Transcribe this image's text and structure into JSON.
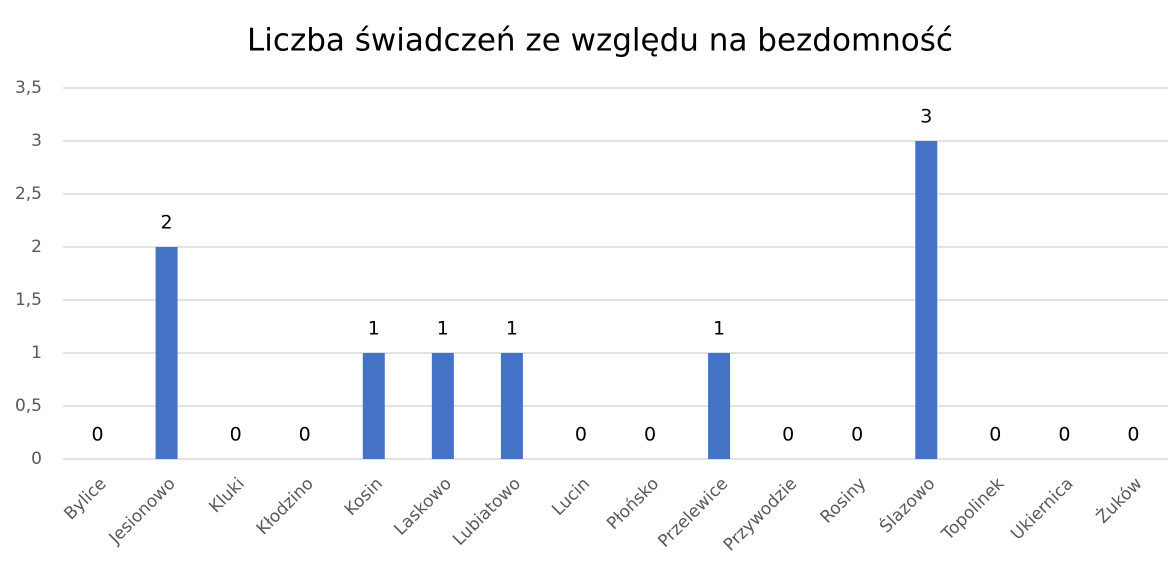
{
  "chart_data": {
    "type": "bar",
    "title": "Liczba świadczeń ze względu na bezdomność",
    "categories": [
      "Bylice",
      "Jesionowo",
      "Kluki",
      "Kłodzino",
      "Kosin",
      "Laskowo",
      "Lubiatowo",
      "Lucin",
      "Płońsko",
      "Przelewice",
      "Przywodzie",
      "Rosiny",
      "Ślazowo",
      "Topolinek",
      "Ukiernica",
      "Żuków"
    ],
    "values": [
      0,
      2,
      0,
      0,
      1,
      1,
      1,
      0,
      0,
      1,
      0,
      0,
      3,
      0,
      0,
      0
    ],
    "color": "#4472c4",
    "ylim": [
      0,
      3.5
    ],
    "yticks": [
      0,
      {
        "value": 0.5,
        "label": "0,5"
      },
      1,
      {
        "value": 1.5,
        "label": "1,5"
      },
      2,
      {
        "value": 2.5,
        "label": "2,5"
      },
      3,
      {
        "value": 3.5,
        "label": "3,5"
      }
    ],
    "grid": true
  }
}
